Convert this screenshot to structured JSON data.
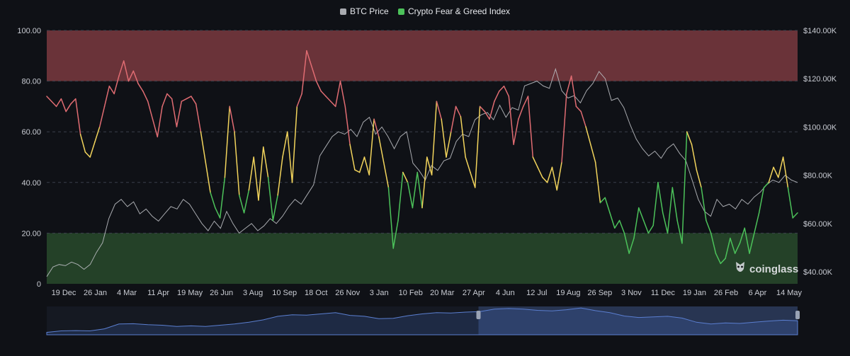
{
  "legend": [
    {
      "label": "BTC Price",
      "color": "#a9abb0"
    },
    {
      "label": "Crypto Fear & Greed Index",
      "color": "#4cc25a"
    }
  ],
  "watermark": "coinglass",
  "chart_data": {
    "type": "line",
    "y_left": {
      "ticks": [
        "100.00",
        "80.00",
        "60.00",
        "40.00",
        "20.00",
        "0"
      ],
      "range": [
        0,
        100
      ]
    },
    "y_right": {
      "ticks": [
        "$140.00K",
        "$120.00K",
        "$100.00K",
        "$80.00K",
        "$60.00K",
        "$40.00K"
      ],
      "range": [
        35000,
        140000
      ]
    },
    "x_ticks": [
      "19 Dec",
      "26 Jan",
      "4 Mar",
      "11 Apr",
      "19 May",
      "26 Jun",
      "3 Aug",
      "10 Sep",
      "18 Oct",
      "26 Nov",
      "3 Jan",
      "10 Feb",
      "20 Mar",
      "27 Apr",
      "4 Jun",
      "12 Jul",
      "19 Aug",
      "26 Sep",
      "3 Nov",
      "11 Dec",
      "19 Jan",
      "26 Feb",
      "6 Apr",
      "14 May"
    ],
    "zones": [
      {
        "name": "greed",
        "from": 80,
        "to": 100,
        "color": "#7a3a40"
      },
      {
        "name": "fear",
        "from": 0,
        "to": 20,
        "color": "#284a2c"
      }
    ],
    "grid": true,
    "series": [
      {
        "name": "BTC Price",
        "color": "#b9bbc0",
        "axis": "right",
        "values": [
          38000,
          42000,
          43000,
          42500,
          44000,
          43000,
          41000,
          43000,
          48000,
          52000,
          62000,
          68000,
          70000,
          67000,
          69000,
          64000,
          66000,
          63000,
          61000,
          64000,
          67000,
          66000,
          70000,
          68000,
          64000,
          60000,
          57000,
          61000,
          58000,
          65000,
          60000,
          56000,
          58000,
          60000,
          57000,
          59000,
          62000,
          60000,
          63000,
          67000,
          70000,
          68000,
          72000,
          76000,
          88000,
          92000,
          96000,
          98000,
          97000,
          99000,
          96000,
          102000,
          104000,
          97000,
          100000,
          96000,
          91000,
          96000,
          98000,
          85000,
          82000,
          78000,
          84000,
          82000,
          86000,
          87000,
          94000,
          97000,
          96000,
          103000,
          105000,
          106000,
          103000,
          109000,
          104000,
          108000,
          107000,
          117000,
          118000,
          119000,
          117000,
          116000,
          124000,
          115000,
          112000,
          113000,
          110000,
          115000,
          118000,
          123000,
          120000,
          111000,
          112000,
          108000,
          101000,
          95000,
          91000,
          88000,
          90000,
          87000,
          91000,
          93000,
          89000,
          86000,
          78000,
          70000,
          65000,
          63000,
          70000,
          67000,
          68000,
          66000,
          70000,
          68000,
          71000,
          73000,
          76000,
          78000,
          77000,
          80000,
          78000,
          77000
        ]
      },
      {
        "name": "Crypto Fear & Greed Index",
        "color": "#4cc25a",
        "axis": "left",
        "values": [
          74,
          72,
          70,
          73,
          68,
          71,
          73,
          59,
          52,
          50,
          56,
          62,
          70,
          78,
          75,
          82,
          88,
          80,
          84,
          79,
          76,
          72,
          65,
          58,
          70,
          75,
          73,
          62,
          72,
          73,
          74,
          71,
          60,
          48,
          36,
          30,
          26,
          42,
          70,
          60,
          35,
          28,
          37,
          50,
          33,
          54,
          42,
          25,
          35,
          50,
          60,
          40,
          70,
          75,
          92,
          86,
          80,
          76,
          74,
          72,
          70,
          80,
          70,
          55,
          45,
          44,
          50,
          43,
          65,
          58,
          48,
          38,
          14,
          25,
          44,
          40,
          30,
          44,
          30,
          50,
          43,
          72,
          65,
          50,
          60,
          70,
          66,
          50,
          44,
          38,
          70,
          68,
          65,
          72,
          76,
          78,
          74,
          55,
          65,
          70,
          74,
          50,
          46,
          42,
          40,
          46,
          37,
          48,
          75,
          82,
          70,
          68,
          62,
          55,
          48,
          32,
          34,
          28,
          22,
          25,
          20,
          12,
          18,
          30,
          25,
          20,
          23,
          40,
          28,
          20,
          38,
          25,
          16,
          60,
          55,
          45,
          38,
          25,
          20,
          12,
          8,
          10,
          18,
          12,
          16,
          22,
          12,
          20,
          28,
          38,
          40,
          46,
          42,
          50,
          38,
          26,
          28
        ]
      }
    ],
    "navigator": {
      "values": [
        38000,
        43000,
        44000,
        43000,
        50000,
        66000,
        67000,
        64000,
        62000,
        58000,
        60000,
        58000,
        62000,
        66000,
        72000,
        80000,
        92000,
        97000,
        96000,
        100000,
        104000,
        95000,
        92000,
        84000,
        85000,
        94000,
        100000,
        104000,
        103000,
        106000,
        108000,
        116000,
        118000,
        116000,
        112000,
        110000,
        114000,
        120000,
        111000,
        104000,
        93000,
        88000,
        90000,
        92000,
        86000,
        72000,
        66000,
        70000,
        68000,
        72000,
        76000,
        79000,
        77000
      ],
      "selected_range": [
        0.575,
        1.0
      ]
    }
  }
}
